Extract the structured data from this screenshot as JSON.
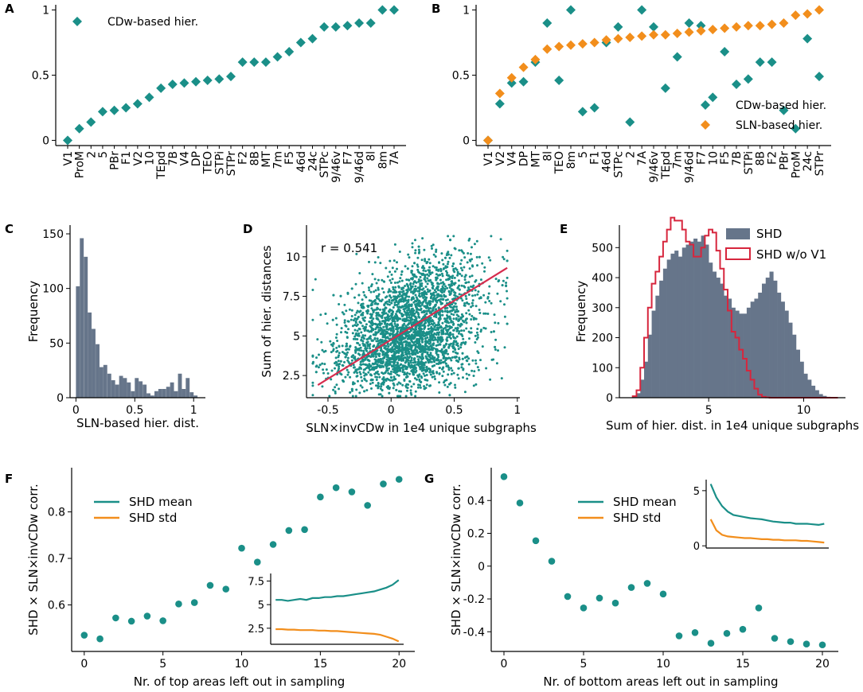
{
  "colors": {
    "teal": "#1a8f88",
    "orange": "#f28e1c",
    "slate": "#66758a",
    "red": "#d7263d",
    "regline": "#d62c4e"
  },
  "chart_data": [
    {
      "id": "A",
      "type": "scatter",
      "panel_label": "A",
      "categories": [
        "V1",
        "ProM",
        "2",
        "5",
        "PBr",
        "F1",
        "V2",
        "10",
        "TEpd",
        "7B",
        "V4",
        "DP",
        "TEO",
        "STPi",
        "STPr",
        "F2",
        "8B",
        "MT",
        "7m",
        "F5",
        "46d",
        "24c",
        "STPc",
        "9/46v",
        "F7",
        "9/46d",
        "8l",
        "8m",
        "7A"
      ],
      "series": [
        {
          "name": "CDw-based hier.",
          "color": "#1a8f88",
          "marker": "diamond",
          "values": [
            0.0,
            0.09,
            0.14,
            0.22,
            0.23,
            0.25,
            0.28,
            0.33,
            0.4,
            0.43,
            0.44,
            0.45,
            0.46,
            0.47,
            0.49,
            0.6,
            0.6,
            0.6,
            0.64,
            0.68,
            0.75,
            0.78,
            0.87,
            0.87,
            0.88,
            0.9,
            0.9,
            1.0,
            1.0
          ]
        }
      ],
      "yticks": [
        0.0,
        0.5,
        1.0
      ],
      "ylim": [
        -0.04,
        1.04
      ]
    },
    {
      "id": "B",
      "type": "scatter",
      "panel_label": "B",
      "categories": [
        "V1",
        "V2",
        "V4",
        "DP",
        "MT",
        "8l",
        "TEO",
        "8m",
        "5",
        "F1",
        "46d",
        "STPc",
        "2",
        "7A",
        "9/46v",
        "TEpd",
        "7m",
        "9/46d",
        "F7",
        "10",
        "F5",
        "7B",
        "STPi",
        "8B",
        "F2",
        "PBr",
        "ProM",
        "24c",
        "STPr"
      ],
      "series": [
        {
          "name": "CDw-based hier.",
          "color": "#1a8f88",
          "marker": "diamond",
          "values": [
            0.0,
            0.28,
            0.44,
            0.45,
            0.6,
            0.9,
            0.46,
            1.0,
            0.22,
            0.25,
            0.75,
            0.87,
            0.14,
            1.0,
            0.87,
            0.4,
            0.64,
            0.9,
            0.88,
            0.33,
            0.68,
            0.43,
            0.47,
            0.6,
            0.6,
            0.23,
            0.09,
            0.78,
            0.49
          ]
        },
        {
          "name": "SLN-based hier.",
          "color": "#f28e1c",
          "marker": "diamond",
          "values": [
            0.0,
            0.36,
            0.48,
            0.56,
            0.62,
            0.7,
            0.72,
            0.73,
            0.74,
            0.75,
            0.77,
            0.78,
            0.79,
            0.8,
            0.81,
            0.81,
            0.82,
            0.83,
            0.84,
            0.85,
            0.86,
            0.87,
            0.88,
            0.88,
            0.89,
            0.9,
            0.96,
            0.97,
            1.0
          ]
        }
      ],
      "yticks": [
        0.0,
        0.5,
        1.0
      ],
      "ylim": [
        -0.04,
        1.04
      ]
    },
    {
      "id": "C",
      "type": "bar",
      "panel_label": "C",
      "title": "",
      "xlabel": "SLN-based hier. dist.",
      "ylabel": "Frequency",
      "bin_width": 0.033,
      "bins_start": [
        0.0,
        0.033,
        0.067,
        0.1,
        0.133,
        0.167,
        0.2,
        0.233,
        0.267,
        0.3,
        0.333,
        0.367,
        0.4,
        0.433,
        0.467,
        0.5,
        0.533,
        0.567,
        0.6,
        0.633,
        0.667,
        0.7,
        0.733,
        0.767,
        0.8,
        0.833,
        0.867,
        0.9,
        0.933,
        0.967,
        1.0
      ],
      "values": [
        102,
        146,
        129,
        78,
        63,
        49,
        28,
        30,
        22,
        16,
        12,
        20,
        18,
        14,
        6,
        18,
        15,
        12,
        4,
        2,
        6,
        8,
        8,
        10,
        14,
        6,
        22,
        8,
        18,
        5,
        2
      ],
      "color": "#66758a",
      "xticks": [
        0.0,
        0.5,
        1.0
      ],
      "yticks": [
        0,
        50,
        100,
        150
      ],
      "xlim": [
        -0.05,
        1.1
      ],
      "ylim": [
        0,
        158
      ]
    },
    {
      "id": "D",
      "type": "scatter",
      "panel_label": "D",
      "title": "",
      "xlabel": "SLN×invCDw in 1e4 unique subgraphs",
      "ylabel": "Sum of hier. distances",
      "annotation": "r = 0.541",
      "n_points": 10000,
      "regression": {
        "x": [
          -0.58,
          0.92
        ],
        "y": [
          1.9,
          9.3
        ]
      },
      "xticks": [
        -0.5,
        0.0,
        0.5,
        1.0
      ],
      "yticks": [
        2.5,
        5.0,
        7.5,
        10.0
      ],
      "xlim": [
        -0.67,
        1.02
      ],
      "ylim": [
        1.1,
        12.0
      ],
      "point_color": "#1a8f88",
      "line_color": "#d62c4e"
    },
    {
      "id": "E",
      "type": "bar",
      "panel_label": "E",
      "title": "",
      "xlabel": "Sum of hier. dist. in 1e4 unique subgraphs",
      "ylabel": "Frequency",
      "bin_width": 0.2,
      "bins_start": [
        1.0,
        1.2,
        1.4,
        1.6,
        1.8,
        2.0,
        2.2,
        2.4,
        2.6,
        2.8,
        3.0,
        3.2,
        3.4,
        3.6,
        3.8,
        4.0,
        4.2,
        4.4,
        4.6,
        4.8,
        5.0,
        5.2,
        5.4,
        5.6,
        5.8,
        6.0,
        6.2,
        6.4,
        6.6,
        6.8,
        7.0,
        7.2,
        7.4,
        7.6,
        7.8,
        8.0,
        8.2,
        8.4,
        8.6,
        8.8,
        9.0,
        9.2,
        9.4,
        9.6,
        9.8,
        10.0,
        10.2,
        10.4,
        10.6,
        10.8,
        11.0,
        11.2,
        11.4,
        11.6
      ],
      "series": [
        {
          "name": "SHD",
          "style": "filled",
          "color": "#66758a",
          "values": [
            5,
            15,
            60,
            120,
            210,
            290,
            340,
            390,
            430,
            460,
            480,
            490,
            470,
            500,
            510,
            520,
            530,
            520,
            540,
            510,
            450,
            420,
            400,
            380,
            340,
            330,
            300,
            290,
            280,
            280,
            300,
            320,
            330,
            350,
            380,
            400,
            420,
            390,
            350,
            320,
            290,
            250,
            210,
            160,
            120,
            80,
            60,
            40,
            25,
            12,
            6,
            3,
            1,
            0
          ]
        },
        {
          "name": "SHD w/o V1",
          "style": "step",
          "color": "#d7263d",
          "values": [
            5,
            25,
            100,
            200,
            300,
            380,
            420,
            470,
            520,
            560,
            600,
            590,
            590,
            560,
            520,
            510,
            470,
            470,
            500,
            540,
            560,
            550,
            490,
            430,
            360,
            290,
            220,
            200,
            160,
            130,
            90,
            60,
            30,
            10,
            3,
            1,
            0,
            0,
            0,
            0,
            0,
            0,
            0,
            0,
            0,
            0,
            0,
            0,
            0,
            0,
            0,
            0,
            0,
            0
          ]
        }
      ],
      "xticks": [
        5,
        10
      ],
      "yticks": [
        0,
        100,
        200,
        300,
        400,
        500
      ],
      "xlim": [
        0.3,
        12.2
      ],
      "ylim": [
        0,
        575
      ]
    },
    {
      "id": "F",
      "type": "scatter",
      "panel_label": "F",
      "title": "",
      "xlabel": "Nr. of top areas left out in sampling",
      "ylabel": "SHD × SLN×invCDw corr.",
      "x": [
        0,
        1,
        2,
        3,
        4,
        5,
        6,
        7,
        8,
        9,
        10,
        11,
        12,
        13,
        14,
        15,
        16,
        17,
        18,
        19,
        20
      ],
      "values": [
        0.535,
        0.527,
        0.572,
        0.565,
        0.576,
        0.566,
        0.602,
        0.605,
        0.642,
        0.634,
        0.722,
        0.692,
        0.73,
        0.76,
        0.762,
        0.832,
        0.852,
        0.843,
        0.814,
        0.86,
        0.87
      ],
      "xticks": [
        0,
        5,
        10,
        15,
        20
      ],
      "yticks": [
        0.6,
        0.7,
        0.8
      ],
      "xlim": [
        -0.8,
        21
      ],
      "ylim": [
        0.5,
        0.895
      ],
      "legend": [
        {
          "name": "SHD mean",
          "color": "#1a8f88"
        },
        {
          "name": "SHD std",
          "color": "#f28e1c"
        }
      ],
      "inset": {
        "x": [
          0,
          1,
          2,
          3,
          4,
          5,
          6,
          7,
          8,
          9,
          10,
          11,
          12,
          13,
          14,
          15,
          16,
          17,
          18,
          19,
          20
        ],
        "mean": [
          5.5,
          5.5,
          5.4,
          5.5,
          5.6,
          5.5,
          5.7,
          5.7,
          5.8,
          5.8,
          5.9,
          5.9,
          6.0,
          6.1,
          6.2,
          6.3,
          6.4,
          6.6,
          6.8,
          7.1,
          7.6
        ],
        "std": [
          2.4,
          2.4,
          2.35,
          2.35,
          2.3,
          2.3,
          2.3,
          2.25,
          2.25,
          2.2,
          2.2,
          2.15,
          2.1,
          2.05,
          2.0,
          1.95,
          1.9,
          1.8,
          1.6,
          1.4,
          1.1
        ],
        "yticks": [
          2.5,
          5.0,
          7.5
        ],
        "ylim": [
          0.8,
          8.3
        ]
      }
    },
    {
      "id": "G",
      "type": "scatter",
      "panel_label": "G",
      "title": "",
      "xlabel": "Nr. of bottom areas left out in sampling",
      "ylabel": "SHD × SLN×invCDw corr.",
      "x": [
        0,
        1,
        2,
        3,
        4,
        5,
        6,
        7,
        8,
        9,
        10,
        11,
        12,
        13,
        14,
        15,
        16,
        17,
        18,
        19,
        20
      ],
      "values": [
        0.545,
        0.385,
        0.155,
        0.03,
        -0.185,
        -0.255,
        -0.195,
        -0.225,
        -0.13,
        -0.105,
        -0.17,
        -0.425,
        -0.405,
        -0.47,
        -0.41,
        -0.385,
        -0.255,
        -0.44,
        -0.46,
        -0.475,
        -0.48
      ],
      "xticks": [
        0,
        5,
        10,
        15,
        20
      ],
      "yticks": [
        -0.4,
        -0.2,
        0.0,
        0.2,
        0.4
      ],
      "xlim": [
        -0.8,
        21
      ],
      "ylim": [
        -0.52,
        0.6
      ],
      "legend": [
        {
          "name": "SHD mean",
          "color": "#1a8f88"
        },
        {
          "name": "SHD std",
          "color": "#f28e1c"
        }
      ],
      "inset": {
        "x": [
          0,
          1,
          2,
          3,
          4,
          5,
          6,
          7,
          8,
          9,
          10,
          11,
          12,
          13,
          14,
          15,
          16,
          17,
          18,
          19,
          20
        ],
        "mean": [
          5.6,
          4.4,
          3.6,
          3.1,
          2.8,
          2.7,
          2.6,
          2.5,
          2.45,
          2.4,
          2.3,
          2.2,
          2.15,
          2.1,
          2.1,
          2.0,
          2.0,
          2.0,
          1.95,
          1.9,
          2.0
        ],
        "std": [
          2.4,
          1.4,
          1.0,
          0.85,
          0.8,
          0.75,
          0.7,
          0.7,
          0.65,
          0.6,
          0.6,
          0.55,
          0.55,
          0.5,
          0.5,
          0.5,
          0.45,
          0.45,
          0.4,
          0.35,
          0.3
        ],
        "yticks": [
          0,
          5
        ],
        "ylim": [
          -0.2,
          6.0
        ]
      }
    }
  ]
}
